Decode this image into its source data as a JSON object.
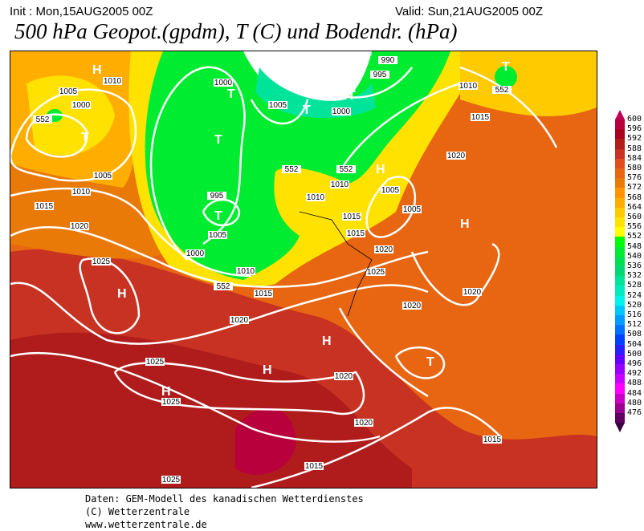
{
  "header": {
    "init": "Init : Mon,15AUG2005 00Z",
    "valid": "Valid: Sun,21AUG2005 00Z",
    "title": "500 hPa Geopot.(gpdm), T (C) und Bodendr. (hPa)"
  },
  "colorbar": {
    "labels": [
      "600",
      "596",
      "592",
      "588",
      "584",
      "580",
      "576",
      "572",
      "568",
      "564",
      "560",
      "556",
      "552",
      "548",
      "540",
      "536",
      "532",
      "528",
      "524",
      "520",
      "516",
      "512",
      "508",
      "504",
      "500",
      "496",
      "492",
      "488",
      "484",
      "480",
      "476"
    ],
    "colors": [
      "#b8003c",
      "#a8001e",
      "#b01c1c",
      "#c83222",
      "#e04e1c",
      "#e86612",
      "#ea7a08",
      "#ff9400",
      "#ffae00",
      "#ffca00",
      "#ffe200",
      "#ffff00",
      "#00ff00",
      "#00ec30",
      "#00e050",
      "#00d874",
      "#00e49a",
      "#00ecc0",
      "#00f4ec",
      "#00c8ff",
      "#009cff",
      "#0070ff",
      "#0040ff",
      "#2820ff",
      "#6400ff",
      "#9600ff",
      "#c800ff",
      "#ff00ff",
      "#cc00c4",
      "#9c0090",
      "#600060"
    ],
    "top_color": "#c0005c",
    "bottom_color": "#3c0040"
  },
  "map": {
    "isobar_labels": [
      "1005",
      "1000",
      "1010",
      "1005",
      "1010",
      "1015",
      "1020",
      "1025",
      "1000",
      "1005",
      "995",
      "1000",
      "1005",
      "1010",
      "1010",
      "1015",
      "1020",
      "1025",
      "1015",
      "1020",
      "1025",
      "1020",
      "1025",
      "1025",
      "1020",
      "1015",
      "1015",
      "1020",
      "1000",
      "995",
      "990",
      "1005",
      "1010",
      "1015",
      "1020",
      "1005",
      "1010",
      "1015",
      "1020",
      "552",
      "552",
      "552",
      "552",
      "552"
    ],
    "pressure_centers": [
      "H",
      "T",
      "H",
      "T",
      "T",
      "T",
      "T",
      "T",
      "T",
      "H",
      "H",
      "H",
      "H",
      "H",
      "T",
      "T"
    ]
  },
  "footer": {
    "line1": "Daten: GEM-Modell des kanadischen Wetterdienstes",
    "line2": "(C) Wetterzentrale",
    "line3": "www.wetterzentrale.de"
  }
}
